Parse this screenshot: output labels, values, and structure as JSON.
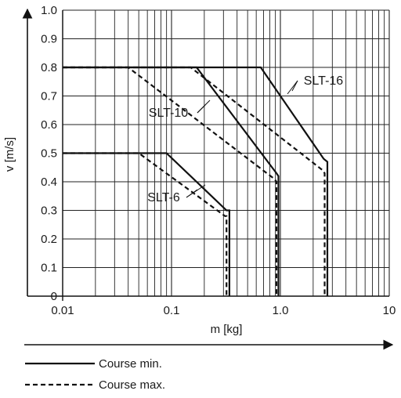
{
  "chart_data": {
    "type": "line",
    "title": "",
    "xlabel": "m [kg]",
    "ylabel": "v [m/s]",
    "xscale": "log",
    "xlim": [
      0.01,
      10
    ],
    "ylim": [
      0,
      1.0
    ],
    "x_tick_labels": [
      "0.01",
      "0.1",
      "1.0",
      "10"
    ],
    "y_tick_labels": [
      "0",
      "0.1",
      "0.2",
      "0.3",
      "0.4",
      "0.5",
      "0.6",
      "0.7",
      "0.8",
      "0.9",
      "1.0"
    ],
    "grid": true,
    "series": [
      {
        "name": "SLT-6",
        "style": "solid",
        "x": [
          0.01,
          0.09,
          0.32,
          0.34,
          0.34
        ],
        "y": [
          0.5,
          0.5,
          0.3,
          0.3,
          0
        ]
      },
      {
        "name": "SLT-6",
        "style": "dashed",
        "x": [
          0.01,
          0.05,
          0.31,
          0.32,
          0.32
        ],
        "y": [
          0.5,
          0.5,
          0.28,
          0.28,
          0
        ]
      },
      {
        "name": "SLT-10",
        "style": "solid",
        "x": [
          0.01,
          0.17,
          0.92,
          0.96,
          0.96
        ],
        "y": [
          0.8,
          0.8,
          0.43,
          0.42,
          0
        ]
      },
      {
        "name": "SLT-10",
        "style": "dashed",
        "x": [
          0.01,
          0.04,
          0.88,
          0.92,
          0.92
        ],
        "y": [
          0.8,
          0.8,
          0.41,
          0.4,
          0
        ]
      },
      {
        "name": "SLT-16",
        "style": "solid",
        "x": [
          0.01,
          0.66,
          2.5,
          2.7,
          2.7
        ],
        "y": [
          0.8,
          0.8,
          0.48,
          0.47,
          0
        ]
      },
      {
        "name": "SLT-16",
        "style": "dashed",
        "x": [
          0.01,
          0.15,
          2.45,
          2.55,
          2.55
        ],
        "y": [
          0.8,
          0.8,
          0.44,
          0.43,
          0
        ]
      }
    ],
    "annotations": [
      {
        "text": "SLT-6",
        "series": "SLT-6"
      },
      {
        "text": "SLT-10",
        "series": "SLT-10"
      },
      {
        "text": "SLT-16",
        "series": "SLT-16"
      }
    ],
    "legend": [
      {
        "label": "Course min.",
        "style": "solid"
      },
      {
        "label": "Course max.",
        "style": "dashed"
      }
    ],
    "legend_placement": "bottom-left"
  }
}
